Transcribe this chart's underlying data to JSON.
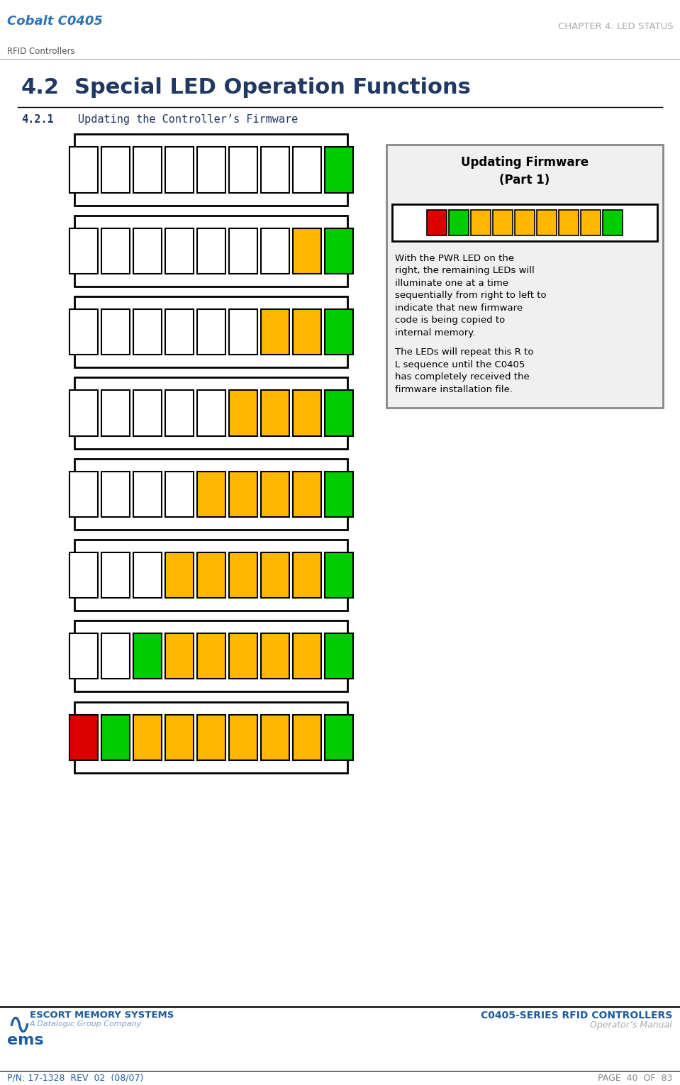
{
  "page_title_left_line1": "Cobalt C0405",
  "page_title_left_line2": "RFID Controllers",
  "page_title_right": "CHAPTER 4: LED STATUS",
  "section_num": "4.2",
  "section_title": "Special LED Operation Functions",
  "subsection_number": "4.2.1",
  "subsection_title": "Updating the Controller’s Firmware",
  "box_title_line1": "Updating Firmware",
  "box_title_line2": "(Part 1)",
  "box_text1": "With the PWR LED on the\nright, the remaining LEDs will\nilluminate one at a time\nsequentially from right to left to\nindicate that new firmware\ncode is being copied to\ninternal memory.",
  "box_text2": "The LEDs will repeat this R to\nL sequence until the C0405\nhas completely received the\nfirmware installation file.",
  "footer_left_line1": "ESCORT MEMORY SYSTEMS",
  "footer_left_line2": "A Datalogic Group Company",
  "footer_left_line3": "ems",
  "footer_right_line1": "C0405-SERIES RFID CONTROLLERS",
  "footer_right_line2": "Operator’s Manual",
  "footer_bottom_left": "P/N: 17-1328  REV  02  (08/07)",
  "footer_bottom_right": "PAGE  40  OF  83",
  "led_rows": [
    [
      "white",
      "white",
      "white",
      "white",
      "white",
      "white",
      "white",
      "white",
      "green"
    ],
    [
      "white",
      "white",
      "white",
      "white",
      "white",
      "white",
      "white",
      "yellow",
      "green"
    ],
    [
      "white",
      "white",
      "white",
      "white",
      "white",
      "white",
      "yellow",
      "yellow",
      "green"
    ],
    [
      "white",
      "white",
      "white",
      "white",
      "white",
      "yellow",
      "yellow",
      "yellow",
      "green"
    ],
    [
      "white",
      "white",
      "white",
      "white",
      "yellow",
      "yellow",
      "yellow",
      "yellow",
      "green"
    ],
    [
      "white",
      "white",
      "white",
      "yellow",
      "yellow",
      "yellow",
      "yellow",
      "yellow",
      "green"
    ],
    [
      "white",
      "white",
      "green",
      "yellow",
      "yellow",
      "yellow",
      "yellow",
      "yellow",
      "green"
    ],
    [
      "red",
      "green",
      "yellow",
      "yellow",
      "yellow",
      "yellow",
      "yellow",
      "yellow",
      "green"
    ]
  ],
  "box_preview_leds": [
    "red",
    "green",
    "yellow",
    "yellow",
    "yellow",
    "yellow",
    "yellow",
    "yellow",
    "green"
  ],
  "color_map": {
    "white": "#FFFFFF",
    "green": "#00CC00",
    "yellow": "#FFB800",
    "red": "#DD0000"
  },
  "bg_color": "#FFFFFF",
  "section_blue": "#1F3864",
  "led_border": "#000000",
  "box_bg": "#F0F0F0"
}
